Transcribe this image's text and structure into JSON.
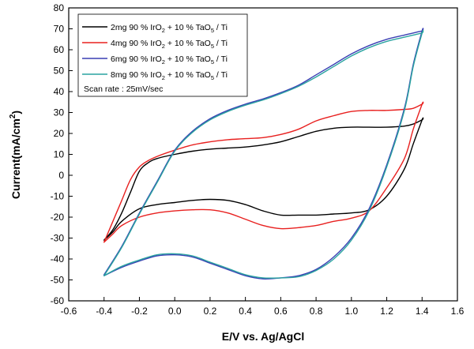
{
  "chart_data": {
    "type": "line",
    "title": "",
    "xlabel": "E/V vs. Ag/AgCl",
    "ylabel": "Current(mA/cm",
    "ylabel_sup": "2",
    "ylabel_end": ")",
    "xlim": [
      -0.6,
      1.6
    ],
    "ylim": [
      -60,
      80
    ],
    "xticks": [
      -0.6,
      -0.4,
      -0.2,
      0.0,
      0.2,
      0.4,
      0.6,
      0.8,
      1.0,
      1.2,
      1.4,
      1.6
    ],
    "yticks": [
      -60,
      -50,
      -40,
      -30,
      -20,
      -10,
      0,
      10,
      20,
      30,
      40,
      50,
      60,
      70,
      80
    ],
    "xtick_labels": [
      "-0.6",
      "-0.4",
      "-0.2",
      "0.0",
      "0.2",
      "0.4",
      "0.6",
      "0.8",
      "1.0",
      "1.2",
      "1.4",
      "1.6"
    ],
    "ytick_labels": [
      "-60",
      "-50",
      "-40",
      "-30",
      "-20",
      "-10",
      "0",
      "10",
      "20",
      "30",
      "40",
      "50",
      "60",
      "70",
      "80"
    ],
    "grid": false,
    "legend_position": "top-left",
    "legend_note": "Scan rate : 25mV/sec",
    "series": [
      {
        "name": "2mg 90 % IrO2 + 10 % TaO5 / Ti",
        "legend": {
          "a": "2mg 90 % IrO",
          "s1": "2",
          "b": " + 10 % TaO",
          "s2": "5",
          "c": " / Ti"
        },
        "color": "#000000",
        "x": [
          -0.4,
          -0.35,
          -0.3,
          -0.25,
          -0.2,
          -0.15,
          -0.1,
          0.0,
          0.1,
          0.2,
          0.3,
          0.4,
          0.5,
          0.6,
          0.7,
          0.8,
          0.9,
          1.0,
          1.1,
          1.2,
          1.3,
          1.35,
          1.4,
          1.4,
          1.35,
          1.3,
          1.2,
          1.1,
          1.0,
          0.9,
          0.8,
          0.7,
          0.6,
          0.5,
          0.4,
          0.3,
          0.2,
          0.1,
          0.0,
          -0.1,
          -0.2,
          -0.3,
          -0.35,
          -0.4
        ],
        "y": [
          -31,
          -26,
          -18,
          -8,
          2,
          6,
          8,
          10,
          11.5,
          12.5,
          13,
          13.5,
          14.5,
          16,
          18.5,
          21,
          22.5,
          23,
          23,
          23,
          23.5,
          24.5,
          26.5,
          26.5,
          15,
          3,
          -10,
          -16.5,
          -18,
          -18.5,
          -19,
          -19,
          -19,
          -17,
          -14,
          -12,
          -11.5,
          -12,
          -13,
          -14,
          -16,
          -22,
          -27,
          -31
        ]
      },
      {
        "name": "4mg 90 % IrO2 + 10 % TaO5 / Ti",
        "legend": {
          "a": "4mg 90 % IrO",
          "s1": "2",
          "b": " + 10 % TaO",
          "s2": "5",
          "c": " / Ti"
        },
        "color": "#e8201f",
        "x": [
          -0.4,
          -0.35,
          -0.3,
          -0.25,
          -0.2,
          -0.15,
          -0.1,
          0.0,
          0.1,
          0.2,
          0.3,
          0.4,
          0.5,
          0.6,
          0.7,
          0.8,
          0.9,
          1.0,
          1.1,
          1.2,
          1.3,
          1.35,
          1.4,
          1.4,
          1.35,
          1.3,
          1.2,
          1.1,
          1.0,
          0.9,
          0.8,
          0.7,
          0.6,
          0.5,
          0.4,
          0.3,
          0.2,
          0.1,
          0.0,
          -0.1,
          -0.2,
          -0.3,
          -0.35,
          -0.4
        ],
        "y": [
          -32,
          -22,
          -12,
          -2,
          4,
          7,
          9,
          12,
          14.5,
          16,
          17,
          17.5,
          18,
          19.5,
          22,
          26,
          28.5,
          30.5,
          31,
          31,
          31.5,
          32,
          34,
          34,
          22,
          8,
          -6,
          -17,
          -20.5,
          -22,
          -24,
          -25,
          -25.5,
          -24,
          -21,
          -18,
          -16.5,
          -16.5,
          -17,
          -18,
          -20,
          -24,
          -28,
          -32
        ]
      },
      {
        "name": "6mg 90 % IrO2 + 10 % TaO5 / Ti",
        "legend": {
          "a": "6mg 90 % IrO",
          "s1": "2",
          "b": " + 10 % TaO",
          "s2": "5",
          "c": " / Ti"
        },
        "color": "#3a3fb4",
        "x": [
          -0.4,
          -0.3,
          -0.2,
          -0.1,
          0.0,
          0.1,
          0.2,
          0.3,
          0.4,
          0.5,
          0.6,
          0.7,
          0.8,
          0.9,
          1.0,
          1.1,
          1.2,
          1.3,
          1.35,
          1.4,
          1.4,
          1.35,
          1.3,
          1.2,
          1.1,
          1.0,
          0.9,
          0.8,
          0.7,
          0.6,
          0.5,
          0.4,
          0.3,
          0.2,
          0.1,
          0.0,
          -0.1,
          -0.2,
          -0.3,
          -0.4
        ],
        "y": [
          -47.5,
          -34,
          -18,
          -3,
          12,
          21,
          27,
          31,
          34,
          36.5,
          39.5,
          43,
          48,
          53,
          58,
          62,
          65,
          67,
          68,
          69,
          69,
          53,
          32,
          5,
          -16,
          -30,
          -39,
          -45,
          -48,
          -49,
          -49.5,
          -48,
          -45,
          -42,
          -39,
          -38,
          -38.5,
          -41,
          -44,
          -48
        ]
      },
      {
        "name": "8mg 90 % IrO2 + 10 % TaO5 / Ti",
        "legend": {
          "a": "8mg 90 % IrO",
          "s1": "2",
          "b": " + 10 % TaO",
          "s2": "5",
          "c": " / Ti"
        },
        "color": "#2aa3a0",
        "x": [
          -0.4,
          -0.3,
          -0.2,
          -0.1,
          0.0,
          0.1,
          0.2,
          0.3,
          0.4,
          0.5,
          0.6,
          0.7,
          0.8,
          0.9,
          1.0,
          1.1,
          1.2,
          1.3,
          1.35,
          1.4,
          1.4,
          1.35,
          1.3,
          1.2,
          1.1,
          1.0,
          0.9,
          0.8,
          0.7,
          0.6,
          0.5,
          0.4,
          0.3,
          0.2,
          0.1,
          0.0,
          -0.1,
          -0.2,
          -0.3,
          -0.4
        ],
        "y": [
          -48,
          -34.5,
          -18.5,
          -3.5,
          11.5,
          20.5,
          26.5,
          30.5,
          33.5,
          36,
          39,
          42.5,
          47,
          52,
          57,
          61,
          64,
          66,
          67,
          68,
          68,
          52,
          31,
          4,
          -17,
          -31,
          -40,
          -45.5,
          -48.5,
          -49,
          -49,
          -47.5,
          -44.5,
          -41.5,
          -38.5,
          -37.5,
          -38,
          -40.5,
          -43.5,
          -48
        ]
      }
    ]
  }
}
